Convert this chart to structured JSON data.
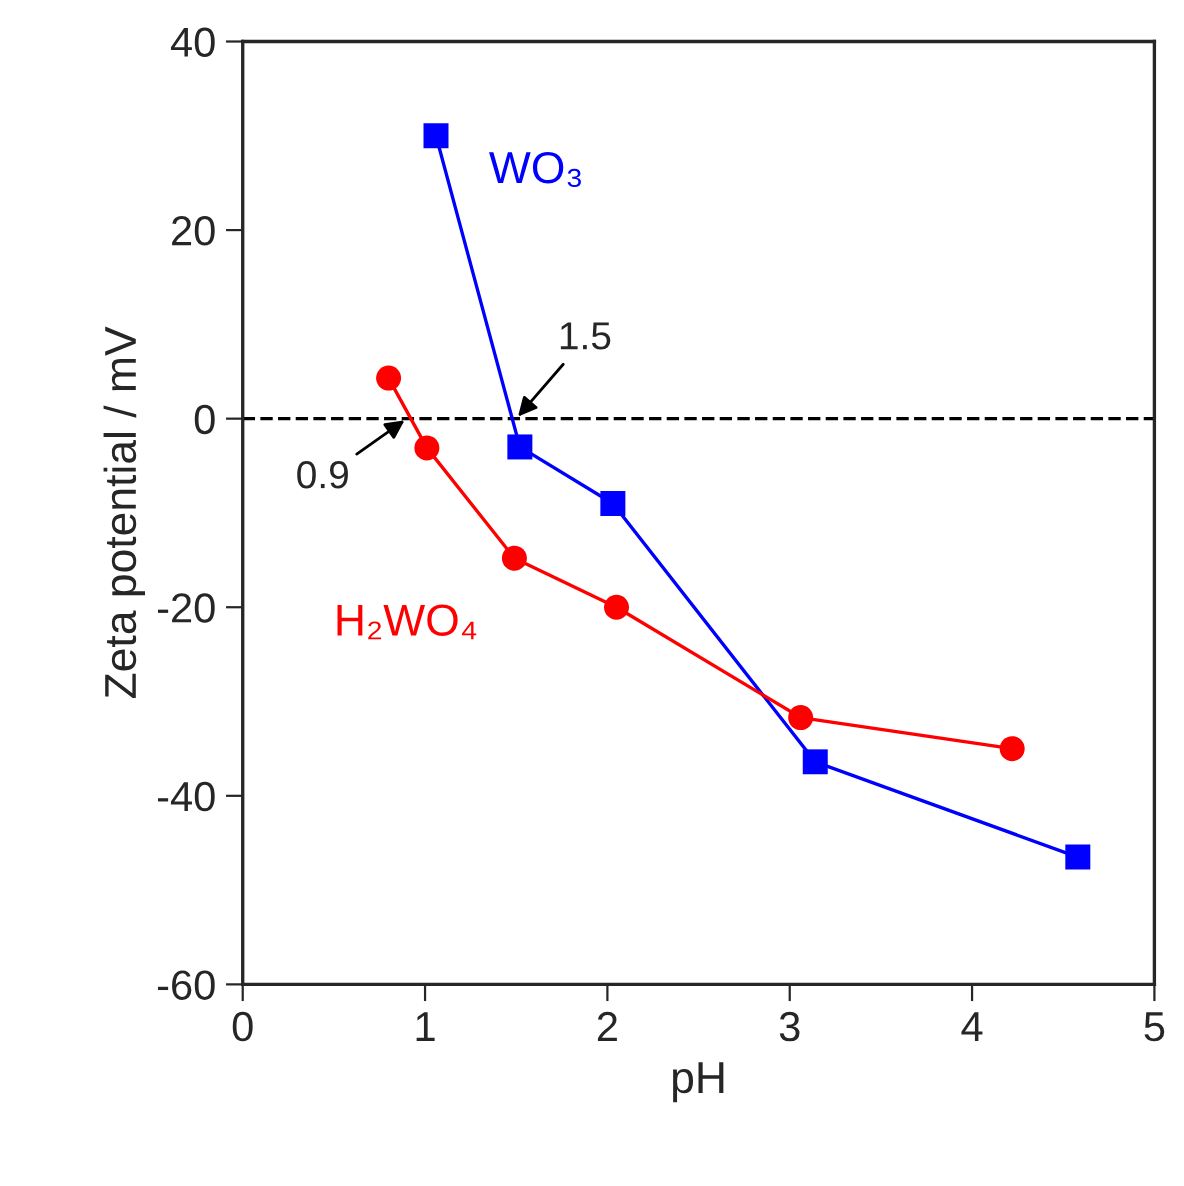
{
  "chart_data": {
    "type": "line",
    "xlabel": "pH",
    "ylabel": "Zeta potential / mV",
    "xlim": [
      0,
      5
    ],
    "ylim": [
      -60,
      40
    ],
    "xticks": [
      0,
      1,
      2,
      3,
      4,
      5
    ],
    "yticks": [
      -60,
      -40,
      -20,
      0,
      20,
      40
    ],
    "grid": false,
    "legend": false,
    "series": [
      {
        "name": "WO₃",
        "color": "#0000ff",
        "marker": "square",
        "x": [
          1.06,
          1.52,
          2.03,
          3.14,
          4.58
        ],
        "values": [
          30,
          -3,
          -9,
          -36.4,
          -46.5
        ]
      },
      {
        "name": "H₂WO₄",
        "color": "#ff0000",
        "marker": "circle",
        "x": [
          0.8,
          1.01,
          1.49,
          2.05,
          3.06,
          4.22
        ],
        "values": [
          4.3,
          -3.1,
          -14.8,
          -20,
          -31.7,
          -35
        ]
      }
    ],
    "ref_lines": [
      {
        "axis": "y",
        "value": 0,
        "color": "#000000",
        "line_style": "dashed"
      }
    ],
    "annotations": [
      {
        "text": "1.5",
        "x": 1.5,
        "y": 0
      },
      {
        "text": "0.9",
        "x": 0.9,
        "y": 0
      }
    ]
  }
}
